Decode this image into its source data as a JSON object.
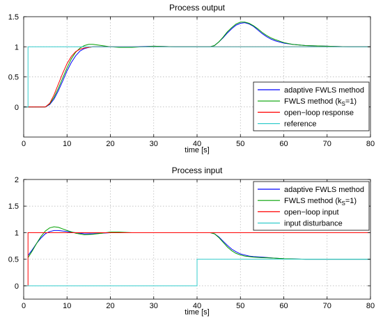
{
  "chart_data": [
    {
      "type": "line",
      "title": "Process output",
      "xlabel": "time [s]",
      "ylabel": "",
      "xlim": [
        0,
        80
      ],
      "ylim": [
        -0.5,
        1.5
      ],
      "xticks": [
        0,
        10,
        20,
        30,
        40,
        50,
        60,
        70,
        80
      ],
      "yticks": [
        0,
        0.5,
        1,
        1.5
      ],
      "xtick_labels": [
        "0",
        "10",
        "20",
        "30",
        "40",
        "50",
        "60",
        "70",
        "80"
      ],
      "ytick_labels": [
        "0",
        "0.5",
        "1",
        "1.5"
      ],
      "grid": true,
      "legend_position": "bottom-right",
      "legend_entries": [
        "adaptive FWLS method",
        "FWLS method (k",
        "S",
        "=1)",
        "open−loop response",
        "reference"
      ],
      "series": [
        {
          "name": "adaptive FWLS method",
          "color": "#0000ff",
          "x": [
            0,
            5,
            6,
            7,
            8,
            9,
            10,
            11,
            12,
            13,
            14,
            15,
            16,
            17,
            18,
            20,
            22,
            25,
            30,
            35,
            40,
            43,
            44,
            45,
            46,
            47,
            48,
            49,
            50,
            51,
            52,
            53,
            54,
            55,
            56,
            57,
            58,
            60,
            62,
            65,
            70,
            75,
            80
          ],
          "y": [
            0,
            0,
            0.04,
            0.13,
            0.27,
            0.43,
            0.6,
            0.74,
            0.85,
            0.93,
            0.97,
            0.99,
            1.0,
            1.0,
            1.0,
            1.0,
            1.0,
            1.0,
            1.01,
            1.0,
            1.0,
            1.0,
            1.02,
            1.08,
            1.15,
            1.23,
            1.3,
            1.36,
            1.39,
            1.4,
            1.38,
            1.34,
            1.28,
            1.22,
            1.17,
            1.13,
            1.1,
            1.06,
            1.04,
            1.02,
            1.01,
            1.0,
            1.0
          ]
        },
        {
          "name": "FWLS method (kS=1)",
          "color": "#00a000",
          "x": [
            0,
            5,
            6,
            7,
            8,
            9,
            10,
            11,
            12,
            13,
            14,
            15,
            16,
            17,
            18,
            20,
            22,
            25,
            30,
            35,
            40,
            43,
            44,
            45,
            46,
            47,
            48,
            49,
            50,
            51,
            52,
            53,
            54,
            55,
            56,
            57,
            58,
            60,
            62,
            65,
            70,
            75,
            80
          ],
          "y": [
            0,
            0,
            0.05,
            0.16,
            0.31,
            0.48,
            0.65,
            0.8,
            0.91,
            0.98,
            1.02,
            1.04,
            1.04,
            1.03,
            1.02,
            1.0,
            0.99,
            0.99,
            1.01,
            1.0,
            1.0,
            1.0,
            1.02,
            1.08,
            1.16,
            1.25,
            1.32,
            1.38,
            1.41,
            1.41,
            1.39,
            1.35,
            1.3,
            1.24,
            1.19,
            1.15,
            1.12,
            1.07,
            1.04,
            1.02,
            1.01,
            1.0,
            1.0
          ]
        },
        {
          "name": "open−loop response",
          "color": "#ff0000",
          "x": [
            0,
            5,
            6,
            7,
            8,
            9,
            10,
            11,
            12,
            13,
            14,
            15,
            16,
            17,
            18,
            20,
            22,
            25,
            30,
            35,
            40,
            43,
            44,
            45,
            46,
            47,
            48,
            49,
            50,
            51,
            52,
            53,
            54,
            55,
            56,
            57,
            58,
            60,
            62,
            65,
            70,
            75,
            80
          ],
          "y": [
            0,
            0,
            0.06,
            0.2,
            0.38,
            0.56,
            0.72,
            0.84,
            0.92,
            0.96,
            0.98,
            0.99,
            1.0,
            1.0,
            1.0,
            1.0,
            1.0,
            1.0,
            1.0,
            1.0,
            1.0,
            1.0,
            1.0,
            1.0,
            1.0,
            1.0,
            1.0,
            1.0,
            1.0,
            1.0,
            1.0,
            1.0,
            1.0,
            1.0,
            1.0,
            1.0,
            1.0,
            1.0,
            1.0,
            1.0,
            1.0,
            1.0,
            1.0
          ]
        },
        {
          "name": "reference",
          "color": "#33cccc",
          "x": [
            0,
            1,
            1,
            80
          ],
          "y": [
            0,
            0,
            1,
            1
          ]
        }
      ]
    },
    {
      "type": "line",
      "title": "Process input",
      "xlabel": "time [s]",
      "ylabel": "",
      "xlim": [
        0,
        80
      ],
      "ylim": [
        -0.25,
        2
      ],
      "xticks": [
        0,
        10,
        20,
        30,
        40,
        50,
        60,
        70,
        80
      ],
      "yticks": [
        0,
        0.5,
        1,
        1.5,
        2
      ],
      "xtick_labels": [
        "0",
        "10",
        "20",
        "30",
        "40",
        "50",
        "60",
        "70",
        "80"
      ],
      "ytick_labels": [
        "0",
        "0.5",
        "1",
        "1.5",
        "2"
      ],
      "grid": true,
      "legend_position": "top-right",
      "legend_entries": [
        "adaptive FWLS method",
        "FWLS method (k",
        "S",
        "=1)",
        "open−loop input",
        "input disturbance"
      ],
      "series": [
        {
          "name": "adaptive FWLS method",
          "color": "#0000ff",
          "x": [
            1,
            2,
            3,
            4,
            5,
            6,
            7,
            8,
            9,
            10,
            12,
            14,
            16,
            18,
            20,
            22,
            25,
            30,
            35,
            40,
            43,
            44,
            45,
            46,
            47,
            48,
            49,
            50,
            51,
            52,
            53,
            55,
            58,
            60,
            65,
            70,
            75,
            80
          ],
          "y": [
            0.57,
            0.68,
            0.8,
            0.9,
            0.98,
            1.02,
            1.04,
            1.04,
            1.03,
            1.02,
            1.0,
            0.98,
            0.98,
            0.99,
            1.0,
            1.0,
            1.0,
            1.0,
            1.0,
            1.0,
            1.0,
            0.98,
            0.92,
            0.84,
            0.76,
            0.69,
            0.64,
            0.6,
            0.58,
            0.56,
            0.55,
            0.54,
            0.52,
            0.51,
            0.5,
            0.5,
            0.5,
            0.5
          ]
        },
        {
          "name": "FWLS method (kS=1)",
          "color": "#00a000",
          "x": [
            1,
            2,
            3,
            4,
            5,
            6,
            7,
            8,
            9,
            10,
            12,
            14,
            16,
            18,
            20,
            22,
            25,
            30,
            35,
            40,
            43,
            44,
            45,
            46,
            47,
            48,
            49,
            50,
            51,
            52,
            53,
            55,
            58,
            60,
            65,
            70,
            75,
            80
          ],
          "y": [
            0.53,
            0.66,
            0.8,
            0.93,
            1.03,
            1.09,
            1.11,
            1.1,
            1.07,
            1.04,
            0.99,
            0.96,
            0.97,
            0.99,
            1.01,
            1.01,
            1.0,
            1.0,
            1.0,
            1.0,
            1.0,
            0.98,
            0.91,
            0.82,
            0.73,
            0.66,
            0.61,
            0.58,
            0.56,
            0.55,
            0.54,
            0.53,
            0.52,
            0.51,
            0.5,
            0.5,
            0.5,
            0.5
          ]
        },
        {
          "name": "open−loop input",
          "color": "#ff0000",
          "x": [
            0,
            1,
            1,
            80
          ],
          "y": [
            0,
            0,
            1,
            1
          ]
        },
        {
          "name": "input disturbance",
          "color": "#33cccc",
          "x": [
            0,
            40,
            40,
            80
          ],
          "y": [
            0,
            0,
            0.5,
            0.5
          ]
        }
      ]
    }
  ]
}
